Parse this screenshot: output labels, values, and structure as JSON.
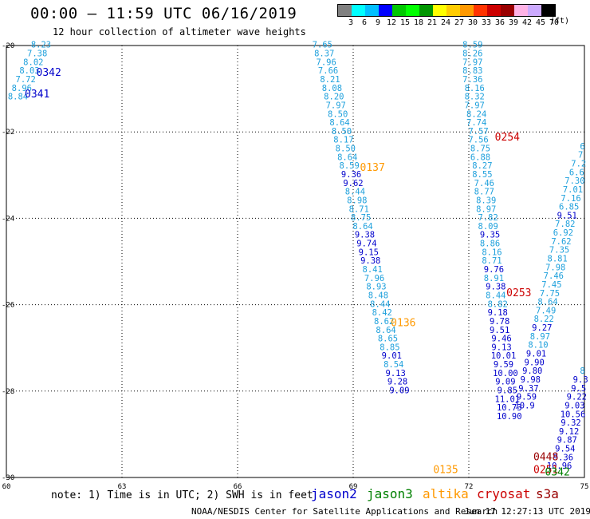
{
  "header": {
    "title": "00:00 — 11:59 UTC 06/16/2019",
    "subtitle": "12 hour collection of altimeter wave heights"
  },
  "legend": {
    "unit": "(ft)",
    "colors": [
      "#808080",
      "#00ffff",
      "#00bfff",
      "#0000ff",
      "#00c800",
      "#00ff00",
      "#009600",
      "#ffff00",
      "#ffcc00",
      "#ff9900",
      "#ff3300",
      "#cc0000",
      "#990000",
      "#ffb3e6",
      "#ccaaff",
      "#000000"
    ],
    "labels": [
      "3",
      "6",
      "9",
      "12",
      "15",
      "18",
      "21",
      "24",
      "27",
      "30",
      "33",
      "36",
      "39",
      "42",
      "45",
      "70"
    ]
  },
  "axes": {
    "x_ticks": [
      "60",
      "63",
      "66",
      "69",
      "72",
      "75"
    ],
    "y_ticks": [
      "-20",
      "-22",
      "-24",
      "-26",
      "-28",
      "-30"
    ]
  },
  "note": "note: 1) Time is in UTC; 2) SWH is in feet",
  "satellites": [
    {
      "name": "jason2",
      "color": "#0000cc"
    },
    {
      "name": "jason3",
      "color": "#008000"
    },
    {
      "name": "altika",
      "color": "#ff9900"
    },
    {
      "name": "cryosat",
      "color": "#cc0000"
    },
    {
      "name": "s3a",
      "color": "#990000"
    }
  ],
  "footer": {
    "credit": "NOAA/NESDIS Center for Satellite Applications and Research",
    "timestamp": "Jun 17 12:27:13 UTC 2019"
  },
  "chart_data": {
    "type": "scatter",
    "xlim": [
      60,
      75
    ],
    "ylim": [
      -30,
      -20
    ],
    "grid": true,
    "pass_labels": [
      {
        "label": "0342",
        "lon": 61.1,
        "lat": -20.7,
        "color": "#0000cc"
      },
      {
        "label": "0341",
        "lon": 60.8,
        "lat": -21.2,
        "color": "#0000cc"
      },
      {
        "label": "0254",
        "lon": 73.0,
        "lat": -22.2,
        "color": "#cc0000"
      },
      {
        "label": "0137",
        "lon": 69.5,
        "lat": -22.9,
        "color": "#ff9900"
      },
      {
        "label": "0253",
        "lon": 73.3,
        "lat": -25.8,
        "color": "#cc0000"
      },
      {
        "label": "0136",
        "lon": 70.3,
        "lat": -26.5,
        "color": "#ff9900"
      },
      {
        "label": "0135",
        "lon": 71.4,
        "lat": -29.9,
        "color": "#ff9900"
      },
      {
        "label": "0448",
        "lon": 74.0,
        "lat": -29.6,
        "color": "#990000"
      },
      {
        "label": "0251",
        "lon": 74.0,
        "lat": -29.9,
        "color": "#cc0000"
      },
      {
        "label": "0342",
        "lon": 74.3,
        "lat": -29.95,
        "color": "#008000"
      }
    ],
    "tracks": [
      {
        "name": "pass-0342-0341",
        "color_cyan": "#1ea0dc",
        "color_blue": "#0000cc",
        "points": [
          {
            "lon": 60.9,
            "lat": -20.05,
            "v": "8.23"
          },
          {
            "lon": 60.8,
            "lat": -20.25,
            "v": "7.38"
          },
          {
            "lon": 60.7,
            "lat": -20.45,
            "v": "8.02"
          },
          {
            "lon": 60.6,
            "lat": -20.65,
            "v": "8.03"
          },
          {
            "lon": 60.5,
            "lat": -20.85,
            "v": "7.72"
          },
          {
            "lon": 60.4,
            "lat": -21.05,
            "v": "8.96"
          },
          {
            "lon": 60.3,
            "lat": -21.25,
            "v": "8.84"
          }
        ]
      },
      {
        "name": "pass-0137-0136-0135",
        "color_cyan": "#1ea0dc",
        "color_blue": "#0000cc",
        "points": [
          {
            "lon": 68.2,
            "lat": -20.05,
            "v": "7.65"
          },
          {
            "lon": 68.25,
            "lat": -20.25,
            "v": "8.37"
          },
          {
            "lon": 68.3,
            "lat": -20.45,
            "v": "7.96"
          },
          {
            "lon": 68.35,
            "lat": -20.65,
            "v": "7.66"
          },
          {
            "lon": 68.4,
            "lat": -20.85,
            "v": "8.21"
          },
          {
            "lon": 68.45,
            "lat": -21.05,
            "v": "8.08"
          },
          {
            "lon": 68.5,
            "lat": -21.25,
            "v": "8.20"
          },
          {
            "lon": 68.55,
            "lat": -21.45,
            "v": "7.97"
          },
          {
            "lon": 68.6,
            "lat": -21.65,
            "v": "8.50"
          },
          {
            "lon": 68.65,
            "lat": -21.85,
            "v": "8.64"
          },
          {
            "lon": 68.7,
            "lat": -22.05,
            "v": "8.50"
          },
          {
            "lon": 68.75,
            "lat": -22.25,
            "v": "8.17"
          },
          {
            "lon": 68.8,
            "lat": -22.45,
            "v": "8.50"
          },
          {
            "lon": 68.85,
            "lat": -22.65,
            "v": "8.64"
          },
          {
            "lon": 68.9,
            "lat": -22.85,
            "v": "8.59"
          },
          {
            "lon": 68.95,
            "lat": -23.05,
            "v": "9.36"
          },
          {
            "lon": 69.0,
            "lat": -23.25,
            "v": "9.62"
          },
          {
            "lon": 69.05,
            "lat": -23.45,
            "v": "8.44"
          },
          {
            "lon": 69.1,
            "lat": -23.65,
            "v": "8.98"
          },
          {
            "lon": 69.15,
            "lat": -23.85,
            "v": "8.71"
          },
          {
            "lon": 69.2,
            "lat": -24.05,
            "v": "8.75"
          },
          {
            "lon": 69.25,
            "lat": -24.25,
            "v": "8.64"
          },
          {
            "lon": 69.3,
            "lat": -24.45,
            "v": "9.38"
          },
          {
            "lon": 69.35,
            "lat": -24.65,
            "v": "9.74"
          },
          {
            "lon": 69.4,
            "lat": -24.85,
            "v": "9.15"
          },
          {
            "lon": 69.45,
            "lat": -25.05,
            "v": "9.38"
          },
          {
            "lon": 69.5,
            "lat": -25.25,
            "v": "8.41"
          },
          {
            "lon": 69.55,
            "lat": -25.45,
            "v": "7.96"
          },
          {
            "lon": 69.6,
            "lat": -25.65,
            "v": "8.93"
          },
          {
            "lon": 69.65,
            "lat": -25.85,
            "v": "8.48"
          },
          {
            "lon": 69.7,
            "lat": -26.05,
            "v": "8.44"
          },
          {
            "lon": 69.75,
            "lat": -26.25,
            "v": "8.42"
          },
          {
            "lon": 69.8,
            "lat": -26.45,
            "v": "8.62"
          },
          {
            "lon": 69.85,
            "lat": -26.65,
            "v": "8.64"
          },
          {
            "lon": 69.9,
            "lat": -26.85,
            "v": "8.65"
          },
          {
            "lon": 69.95,
            "lat": -27.05,
            "v": "8.85"
          },
          {
            "lon": 70.0,
            "lat": -27.25,
            "v": "9.01"
          },
          {
            "lon": 70.05,
            "lat": -27.45,
            "v": "8.54"
          },
          {
            "lon": 70.1,
            "lat": -27.65,
            "v": "9.13"
          },
          {
            "lon": 70.15,
            "lat": -27.85,
            "v": "9.28"
          },
          {
            "lon": 70.2,
            "lat": -28.05,
            "v": "9.09"
          }
        ]
      },
      {
        "name": "pass-0254-0253",
        "color_cyan": "#1ea0dc",
        "color_blue": "#0000cc",
        "points": [
          {
            "lon": 72.1,
            "lat": -20.05,
            "v": "8.59"
          },
          {
            "lon": 72.1,
            "lat": -20.25,
            "v": "8.26"
          },
          {
            "lon": 72.1,
            "lat": -20.45,
            "v": "7.97"
          },
          {
            "lon": 72.1,
            "lat": -20.65,
            "v": "8.83"
          },
          {
            "lon": 72.1,
            "lat": -20.85,
            "v": "7.36"
          },
          {
            "lon": 72.15,
            "lat": -21.05,
            "v": "8.16"
          },
          {
            "lon": 72.15,
            "lat": -21.25,
            "v": "8.32"
          },
          {
            "lon": 72.15,
            "lat": -21.45,
            "v": "7.97"
          },
          {
            "lon": 72.2,
            "lat": -21.65,
            "v": "8.24"
          },
          {
            "lon": 72.2,
            "lat": -21.85,
            "v": "7.74"
          },
          {
            "lon": 72.25,
            "lat": -22.05,
            "v": "7.57"
          },
          {
            "lon": 72.25,
            "lat": -22.25,
            "v": "7.56"
          },
          {
            "lon": 72.3,
            "lat": -22.45,
            "v": "8.75"
          },
          {
            "lon": 72.3,
            "lat": -22.65,
            "v": "6.88"
          },
          {
            "lon": 72.35,
            "lat": -22.85,
            "v": "8.27"
          },
          {
            "lon": 72.35,
            "lat": -23.05,
            "v": "8.55"
          },
          {
            "lon": 72.4,
            "lat": -23.25,
            "v": "7.46"
          },
          {
            "lon": 72.4,
            "lat": -23.45,
            "v": "8.77"
          },
          {
            "lon": 72.45,
            "lat": -23.65,
            "v": "8.39"
          },
          {
            "lon": 72.45,
            "lat": -23.85,
            "v": "8.97"
          },
          {
            "lon": 72.5,
            "lat": -24.05,
            "v": "7.82"
          },
          {
            "lon": 72.5,
            "lat": -24.25,
            "v": "8.09"
          },
          {
            "lon": 72.55,
            "lat": -24.45,
            "v": "9.35"
          },
          {
            "lon": 72.55,
            "lat": -24.65,
            "v": "8.86"
          },
          {
            "lon": 72.6,
            "lat": -24.85,
            "v": "8.16"
          },
          {
            "lon": 72.6,
            "lat": -25.05,
            "v": "8.71"
          },
          {
            "lon": 72.65,
            "lat": -25.25,
            "v": "9.76"
          },
          {
            "lon": 72.65,
            "lat": -25.45,
            "v": "8.91"
          },
          {
            "lon": 72.7,
            "lat": -25.65,
            "v": "9.38"
          },
          {
            "lon": 72.7,
            "lat": -25.85,
            "v": "8.44"
          },
          {
            "lon": 72.75,
            "lat": -26.05,
            "v": "8.82"
          },
          {
            "lon": 72.75,
            "lat": -26.25,
            "v": "9.18"
          },
          {
            "lon": 72.8,
            "lat": -26.45,
            "v": "9.78"
          },
          {
            "lon": 72.8,
            "lat": -26.65,
            "v": "9.51"
          },
          {
            "lon": 72.85,
            "lat": -26.85,
            "v": "9.46"
          },
          {
            "lon": 72.85,
            "lat": -27.05,
            "v": "9.13"
          },
          {
            "lon": 72.9,
            "lat": -27.25,
            "v": "10.01"
          },
          {
            "lon": 72.9,
            "lat": -27.45,
            "v": "9.59"
          },
          {
            "lon": 72.95,
            "lat": -27.65,
            "v": "10.00"
          },
          {
            "lon": 72.95,
            "lat": -27.85,
            "v": "9.09"
          },
          {
            "lon": 73.0,
            "lat": -28.05,
            "v": "9.85"
          },
          {
            "lon": 73.0,
            "lat": -28.25,
            "v": "11.01"
          },
          {
            "lon": 73.05,
            "lat": -28.45,
            "v": "10.73"
          },
          {
            "lon": 73.05,
            "lat": -28.65,
            "v": "10.90"
          }
        ]
      },
      {
        "name": "pass-0252-0251",
        "color_cyan": "#1ea0dc",
        "color_blue": "#0000cc",
        "points": [
          {
            "lon": 74.95,
            "lat": -22.4,
            "v": "6"
          },
          {
            "lon": 74.9,
            "lat": -22.6,
            "v": "7"
          },
          {
            "lon": 74.85,
            "lat": -22.8,
            "v": "7.2"
          },
          {
            "lon": 74.8,
            "lat": -23.0,
            "v": "6.6"
          },
          {
            "lon": 74.75,
            "lat": -23.2,
            "v": "7.30"
          },
          {
            "lon": 74.7,
            "lat": -23.4,
            "v": "7.01"
          },
          {
            "lon": 74.65,
            "lat": -23.6,
            "v": "7.16"
          },
          {
            "lon": 74.6,
            "lat": -23.8,
            "v": "6.85"
          },
          {
            "lon": 74.55,
            "lat": -24.0,
            "v": "9.51"
          },
          {
            "lon": 74.5,
            "lat": -24.2,
            "v": "7.82"
          },
          {
            "lon": 74.45,
            "lat": -24.4,
            "v": "6.92"
          },
          {
            "lon": 74.4,
            "lat": -24.6,
            "v": "7.62"
          },
          {
            "lon": 74.35,
            "lat": -24.8,
            "v": "7.35"
          },
          {
            "lon": 74.3,
            "lat": -25.0,
            "v": "8.81"
          },
          {
            "lon": 74.25,
            "lat": -25.2,
            "v": "7.98"
          },
          {
            "lon": 74.2,
            "lat": -25.4,
            "v": "7.46"
          },
          {
            "lon": 74.15,
            "lat": -25.6,
            "v": "7.45"
          },
          {
            "lon": 74.1,
            "lat": -25.8,
            "v": "7.75"
          },
          {
            "lon": 74.05,
            "lat": -26.0,
            "v": "8.64"
          },
          {
            "lon": 74.0,
            "lat": -26.2,
            "v": "7.49"
          },
          {
            "lon": 73.95,
            "lat": -26.4,
            "v": "8.22"
          },
          {
            "lon": 73.9,
            "lat": -26.6,
            "v": "9.27"
          },
          {
            "lon": 73.85,
            "lat": -26.8,
            "v": "8.97"
          },
          {
            "lon": 73.8,
            "lat": -27.0,
            "v": "8.10"
          },
          {
            "lon": 73.75,
            "lat": -27.2,
            "v": "9.01"
          },
          {
            "lon": 73.7,
            "lat": -27.4,
            "v": "9.90"
          },
          {
            "lon": 73.65,
            "lat": -27.6,
            "v": "9.80"
          },
          {
            "lon": 73.6,
            "lat": -27.8,
            "v": "9.98"
          },
          {
            "lon": 73.55,
            "lat": -28.0,
            "v": "9.37"
          },
          {
            "lon": 73.5,
            "lat": -28.2,
            "v": "9.59"
          },
          {
            "lon": 73.45,
            "lat": -28.4,
            "v": "10.9"
          }
        ]
      },
      {
        "name": "pass-0342-jason3",
        "color_cyan": "#1ea0dc",
        "color_blue": "#0000cc",
        "points": [
          {
            "lon": 74.95,
            "lat": -27.6,
            "v": "8"
          },
          {
            "lon": 74.9,
            "lat": -27.8,
            "v": "9.3"
          },
          {
            "lon": 74.85,
            "lat": -28.0,
            "v": "9.5"
          },
          {
            "lon": 74.8,
            "lat": -28.2,
            "v": "9.22"
          },
          {
            "lon": 74.75,
            "lat": -28.4,
            "v": "9.03"
          },
          {
            "lon": 74.7,
            "lat": -28.6,
            "v": "10.56"
          },
          {
            "lon": 74.65,
            "lat": -28.8,
            "v": "9.32"
          },
          {
            "lon": 74.6,
            "lat": -29.0,
            "v": "9.12"
          },
          {
            "lon": 74.55,
            "lat": -29.2,
            "v": "9.87"
          },
          {
            "lon": 74.5,
            "lat": -29.4,
            "v": "9.54"
          },
          {
            "lon": 74.45,
            "lat": -29.6,
            "v": "9.36"
          },
          {
            "lon": 74.35,
            "lat": -29.8,
            "v": "10.96"
          }
        ]
      }
    ]
  }
}
